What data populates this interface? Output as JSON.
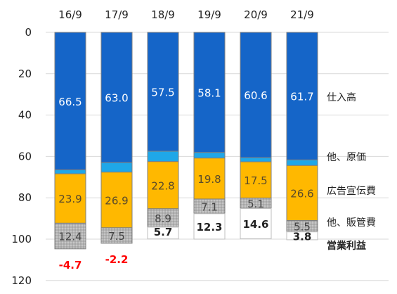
{
  "chart_data": {
    "type": "bar",
    "stacked": true,
    "categories": [
      "16/9",
      "17/9",
      "18/9",
      "19/9",
      "20/9",
      "21/9"
    ],
    "series": [
      {
        "name": "仕入高",
        "values": [
          66.5,
          63.0,
          57.5,
          58.1,
          60.6,
          61.7
        ],
        "labels": [
          "66.5",
          "63.0",
          "57.5",
          "58.1",
          "60.6",
          "61.7"
        ],
        "color": "#1565c8",
        "label_color": "#ffffff"
      },
      {
        "name": "他、原価",
        "values": [
          1.9,
          4.6,
          5.0,
          2.7,
          2.0,
          2.7
        ],
        "labels": [
          "",
          "",
          "",
          "",
          "",
          ""
        ],
        "color": "#1fa7e8",
        "label_color": "#ffffff"
      },
      {
        "name": "広告宣伝費",
        "values": [
          23.9,
          26.9,
          22.8,
          19.8,
          17.5,
          26.6
        ],
        "labels": [
          "23.9",
          "26.9",
          "22.8",
          "19.8",
          "17.5",
          "26.6"
        ],
        "color": "#ffb800",
        "label_color": "#5a4a2a"
      },
      {
        "name": "他、販管費",
        "values": [
          12.4,
          7.5,
          8.9,
          7.1,
          5.1,
          5.5
        ],
        "labels": [
          "12.4",
          "7.5",
          "8.9",
          "7.1",
          "5.1",
          "5.5"
        ],
        "color": "#b5b5b5",
        "label_color": "#444444"
      },
      {
        "name": "営業利益",
        "values": [
          -4.7,
          -2.2,
          5.7,
          12.3,
          14.6,
          3.8
        ],
        "labels": [
          "-4.7",
          "-2.2",
          "5.7",
          "12.3",
          "14.6",
          "3.8"
        ],
        "color": "#ffffff",
        "label_color": "#222222",
        "negative_label_color": "#ff0000"
      }
    ],
    "y_axis": {
      "min": 0,
      "max": 120,
      "reversed": true,
      "ticks": [
        "0",
        "20",
        "40",
        "60",
        "80",
        "100",
        "120"
      ]
    },
    "grid": true,
    "legend_placement": "right"
  }
}
